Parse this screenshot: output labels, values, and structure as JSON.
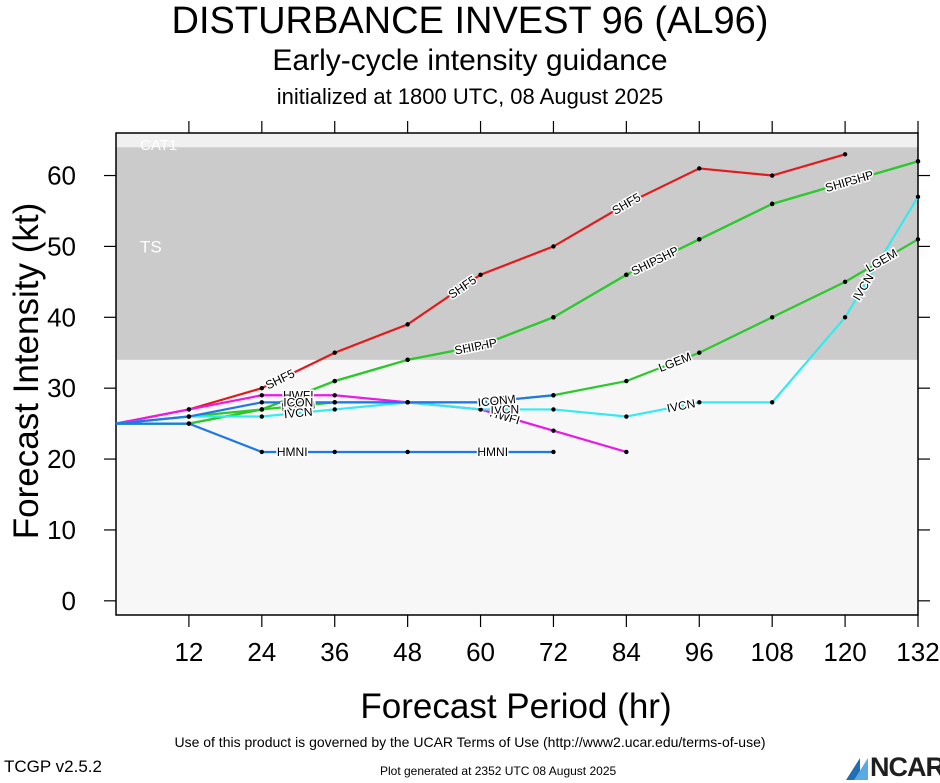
{
  "header": {
    "title": "DISTURBANCE INVEST 96 (AL96)",
    "subtitle": "Early-cycle intensity guidance",
    "init": "initialized at 1800 UTC, 08 August 2025"
  },
  "footer": {
    "terms": "Use of this product is governed by the UCAR Terms of Use (http://www2.ucar.edu/terms-of-use)",
    "version": "TCGP v2.5.2",
    "generated": "Plot generated at 2352 UTC   08 August 2025",
    "logo_text": "NCAR"
  },
  "colors": {
    "background_band": "#f7f7f7",
    "ts_band": "#cbcbcb",
    "cat1_band": "#f0f0f0",
    "band_label": "#ffffff"
  },
  "chart_data": {
    "type": "line",
    "xlabel": "Forecast Period (hr)",
    "ylabel": "Forecast Intensity (kt)",
    "xlim": [
      0,
      132
    ],
    "ylim": [
      -2,
      66
    ],
    "xticks": [
      12,
      24,
      36,
      48,
      60,
      72,
      84,
      96,
      108,
      120,
      132
    ],
    "yticks": [
      0,
      10,
      20,
      30,
      40,
      50,
      60
    ],
    "grid": false,
    "intensity_bands": [
      {
        "label": "TS",
        "from": 34,
        "to": 64,
        "color": "#cbcbcb"
      },
      {
        "label": "CAT1",
        "from": 64,
        "to": 66,
        "color": "#f0f0f0"
      }
    ],
    "series": [
      {
        "name": "SHF5",
        "color": "#e31a1c",
        "x": [
          0,
          12,
          24,
          36,
          48,
          60,
          72,
          84,
          96,
          108,
          120
        ],
        "y": [
          25,
          27,
          30,
          35,
          39,
          46,
          50,
          56,
          61,
          60,
          63
        ],
        "labels_at": [
          27,
          57,
          84
        ]
      },
      {
        "name": "DSHP",
        "color": "#2dc82d",
        "x": [
          0,
          12,
          24,
          36,
          48,
          60,
          72,
          84,
          96,
          108,
          120,
          132
        ],
        "y": [
          25,
          25,
          27,
          31,
          34,
          36,
          40,
          46,
          51,
          56,
          59,
          62
        ],
        "labels_at": [
          60,
          90,
          122
        ]
      },
      {
        "name": "SHIP",
        "color": "#2dc82d",
        "x": [
          0,
          12,
          24,
          36,
          48,
          60,
          72,
          84,
          96,
          108,
          120,
          132
        ],
        "y": [
          25,
          25,
          27,
          31,
          34,
          36,
          40,
          46,
          51,
          56,
          59,
          62
        ],
        "labels_at": [
          58,
          87,
          119
        ]
      },
      {
        "name": "LGEM",
        "color": "#2dc82d",
        "x": [
          0,
          12,
          24,
          36,
          48,
          60,
          72,
          84,
          96,
          108,
          120,
          132
        ],
        "y": [
          25,
          26,
          27,
          28,
          28,
          28,
          29,
          31,
          35,
          40,
          45,
          51
        ],
        "labels_at": [
          30,
          63,
          92,
          126
        ]
      },
      {
        "name": "HWFI",
        "color": "#e81ae8",
        "x": [
          0,
          12,
          24,
          36,
          48,
          60,
          72,
          84
        ],
        "y": [
          25,
          27,
          29,
          29,
          28,
          27,
          24,
          21
        ],
        "labels_at": [
          30,
          64
        ]
      },
      {
        "name": "IVCN",
        "color": "#33eaf0",
        "x": [
          0,
          12,
          24,
          36,
          48,
          60,
          72,
          84,
          96,
          108,
          120,
          132
        ],
        "y": [
          25,
          26,
          26,
          27,
          28,
          27,
          27,
          26,
          28,
          28,
          40,
          57
        ],
        "labels_at": [
          30,
          64,
          93,
          123
        ]
      },
      {
        "name": "ICON",
        "color": "#1f78e8",
        "x": [
          0,
          12,
          24,
          36,
          48,
          60,
          72
        ],
        "y": [
          25,
          26,
          28,
          28,
          28,
          28,
          29
        ],
        "labels_at": [
          30,
          62
        ]
      },
      {
        "name": "HMNI",
        "color": "#1f78e8",
        "x": [
          0,
          12,
          24,
          36,
          48,
          60,
          72
        ],
        "y": [
          25,
          25,
          21,
          21,
          21,
          21,
          21
        ],
        "labels_at": [
          29,
          62
        ]
      }
    ]
  }
}
